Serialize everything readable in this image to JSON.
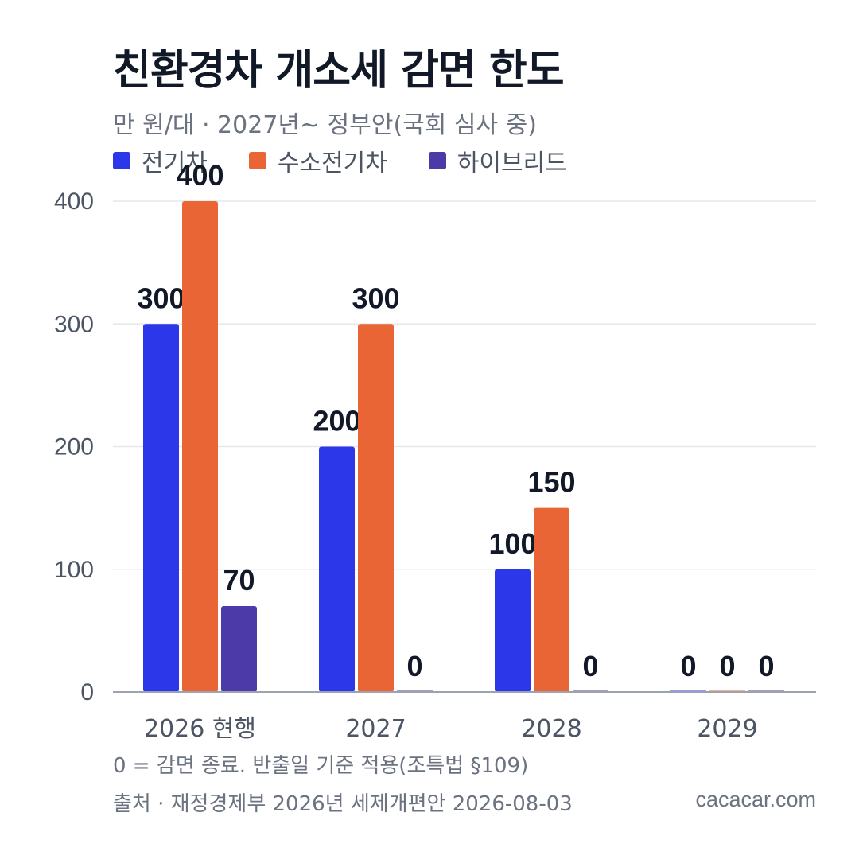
{
  "title": "친환경차 개소세 감면 한도",
  "subtitle": "만 원/대 · 2027년~ 정부안(국회 심사 중)",
  "note": "0 = 감면 종료. 반출일 기준 적용(조특법 §109)",
  "source": "출처 · 재정경제부 2026년 세제개편안 2026-08-03",
  "brand": "cacacar.com",
  "chart_data": {
    "type": "bar",
    "categories": [
      "2026 현행",
      "2027",
      "2028",
      "2029"
    ],
    "series": [
      {
        "name": "전기차",
        "color": "#2b37e8",
        "values": [
          300,
          200,
          100,
          0
        ]
      },
      {
        "name": "수소전기차",
        "color": "#ea6535",
        "values": [
          400,
          300,
          150,
          0
        ]
      },
      {
        "name": "하이브리드",
        "color": "#4b3aa8",
        "values": [
          70,
          0,
          0,
          0
        ]
      }
    ],
    "ylim": [
      0,
      400
    ],
    "yticks": [
      0,
      100,
      200,
      300,
      400
    ],
    "grid": true,
    "legend": "top-left",
    "data_labels": true
  }
}
